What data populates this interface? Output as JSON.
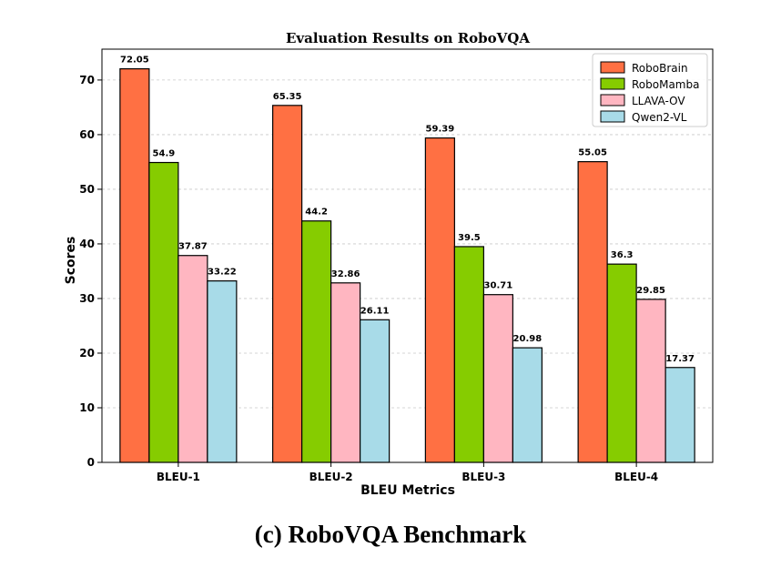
{
  "caption": "(c)  RoboVQA Benchmark",
  "chart_data": {
    "type": "bar",
    "title": "Evaluation Results on RoboVQA",
    "xlabel": "BLEU Metrics",
    "ylabel": "Scores",
    "ylim": [
      0,
      75.65
    ],
    "yticks": [
      0,
      10,
      20,
      30,
      40,
      50,
      60,
      70
    ],
    "grid": "horizontal-dashed",
    "legend_position": "top-right",
    "categories": [
      "BLEU-1",
      "BLEU-2",
      "BLEU-3",
      "BLEU-4"
    ],
    "series": [
      {
        "name": "RoboBrain",
        "color": "#ff7043",
        "values": [
          72.05,
          65.35,
          59.39,
          55.05
        ],
        "labels": [
          "72.05",
          "65.35",
          "59.39",
          "55.05"
        ]
      },
      {
        "name": "RoboMamba",
        "color": "#86cc00",
        "values": [
          54.9,
          44.2,
          39.5,
          36.3
        ],
        "labels": [
          "54.9",
          "44.2",
          "39.5",
          "36.3"
        ]
      },
      {
        "name": "LLAVA-OV",
        "color": "#ffb6c1",
        "values": [
          37.87,
          32.86,
          30.71,
          29.85
        ],
        "labels": [
          "37.87",
          "32.86",
          "30.71",
          "29.85"
        ]
      },
      {
        "name": "Qwen2-VL",
        "color": "#a8dbe8",
        "values": [
          33.22,
          26.11,
          20.98,
          17.37
        ],
        "labels": [
          "33.22",
          "26.11",
          "20.98",
          "17.37"
        ]
      }
    ]
  }
}
